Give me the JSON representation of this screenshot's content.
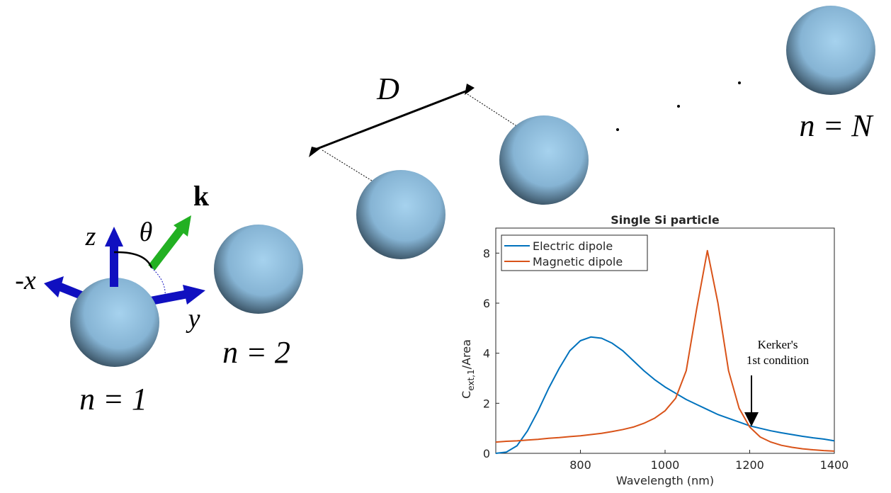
{
  "diagram": {
    "labels": {
      "D": "D",
      "k": "k",
      "theta": "θ",
      "z": "z",
      "minus_x": "-x",
      "y": "y",
      "n1": "n = 1",
      "n2": "n = 2",
      "nN": "n = N"
    }
  },
  "chart_data": {
    "type": "line",
    "title": "Single Si particle",
    "xlabel": "Wavelength (nm)",
    "ylabel": "C",
    "ylabel_sub": "ext,1",
    "ylabel_rest": "/Area",
    "annotation": [
      "Kerker's",
      "1st condition"
    ],
    "x": [
      600,
      625,
      650,
      675,
      700,
      725,
      750,
      775,
      800,
      825,
      850,
      875,
      900,
      925,
      950,
      975,
      1000,
      1025,
      1050,
      1075,
      1100,
      1125,
      1150,
      1175,
      1200,
      1225,
      1250,
      1275,
      1300,
      1325,
      1350,
      1375,
      1400
    ],
    "series": [
      {
        "name": "Electric dipole",
        "color": "#0072bd",
        "values": [
          0.0,
          0.05,
          0.3,
          0.9,
          1.7,
          2.6,
          3.4,
          4.1,
          4.5,
          4.65,
          4.6,
          4.4,
          4.1,
          3.7,
          3.3,
          2.95,
          2.65,
          2.4,
          2.15,
          1.95,
          1.75,
          1.55,
          1.4,
          1.25,
          1.1,
          1.0,
          0.9,
          0.82,
          0.75,
          0.68,
          0.62,
          0.57,
          0.5
        ]
      },
      {
        "name": "Magnetic dipole",
        "color": "#d95319",
        "values": [
          0.45,
          0.48,
          0.5,
          0.53,
          0.56,
          0.6,
          0.63,
          0.67,
          0.7,
          0.75,
          0.8,
          0.87,
          0.95,
          1.05,
          1.2,
          1.4,
          1.7,
          2.2,
          3.3,
          5.8,
          8.1,
          6.0,
          3.3,
          1.8,
          1.05,
          0.65,
          0.45,
          0.32,
          0.24,
          0.18,
          0.14,
          0.11,
          0.09
        ]
      }
    ],
    "xlim": [
      600,
      1400
    ],
    "xticks": [
      800,
      1000,
      1200,
      1400
    ],
    "ylim": [
      0,
      9
    ],
    "yticks": [
      0,
      2,
      4,
      6,
      8
    ],
    "legend": "upper left"
  }
}
